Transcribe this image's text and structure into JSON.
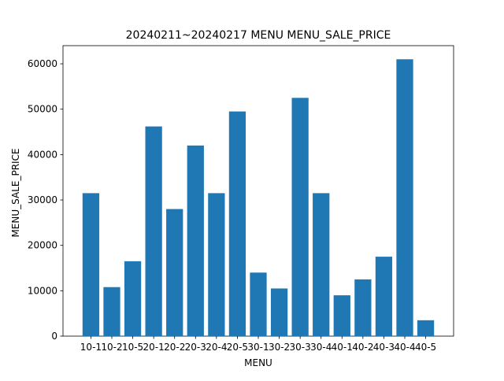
{
  "chart_data": {
    "type": "bar",
    "title": "20240211~20240217 MENU   MENU_SALE_PRICE",
    "xlabel": "MENU",
    "ylabel": "MENU_SALE_PRICE",
    "categories": [
      "10-1",
      "10-2",
      "10-5",
      "20-1",
      "20-2",
      "20-3",
      "20-4",
      "20-5",
      "30-1",
      "30-2",
      "30-3",
      "30-4",
      "40-1",
      "40-2",
      "40-3",
      "40-4",
      "40-5"
    ],
    "values": [
      31500,
      10800,
      16500,
      46200,
      28000,
      42000,
      31500,
      49500,
      14000,
      10500,
      52500,
      31500,
      9000,
      12500,
      17500,
      61000,
      3500
    ],
    "ylim": [
      0,
      64000
    ],
    "yticks": [
      0,
      10000,
      20000,
      30000,
      40000,
      50000,
      60000
    ],
    "grid": false,
    "legend": "none",
    "bar_color": "#1f77b4"
  }
}
